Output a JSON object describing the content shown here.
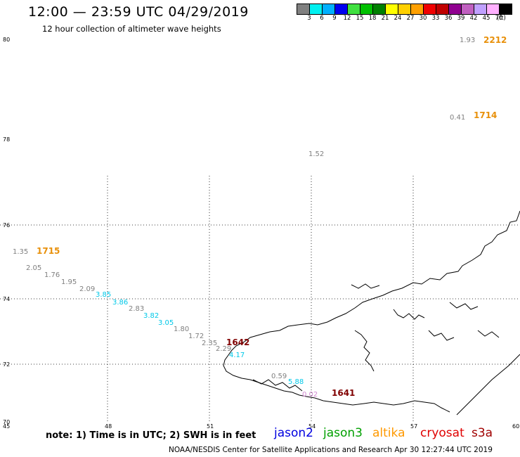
{
  "header": {
    "title": "12:00 — 23:59 UTC 04/29/2019",
    "subtitle": "12 hour collection of altimeter wave heights"
  },
  "legend": {
    "colors": [
      "#808080",
      "#00f0f0",
      "#00b0ff",
      "#0000f0",
      "#40e040",
      "#00c000",
      "#008000",
      "#ffff00",
      "#ffd000",
      "#ffa000",
      "#f00000",
      "#c00000",
      "#900090",
      "#c060c0",
      "#c0a0ff",
      "#ffb0ff",
      "#000000"
    ],
    "ticks": [
      "3",
      "6",
      "9",
      "12",
      "15",
      "18",
      "21",
      "24",
      "27",
      "30",
      "33",
      "36",
      "39",
      "42",
      "45",
      "70"
    ],
    "unit": "(ft)"
  },
  "axes": {
    "lat_labels": [
      "80",
      "78",
      "76",
      "74",
      "72",
      "70"
    ],
    "lon_labels": [
      "45",
      "48",
      "51",
      "54",
      "57",
      "60"
    ]
  },
  "observations": [
    {
      "text": "1.93",
      "color": "#808080"
    },
    {
      "text": "2212",
      "color": "#e8900a",
      "bold": true
    },
    {
      "text": "0.41",
      "color": "#808080"
    },
    {
      "text": "1714",
      "color": "#e8900a",
      "bold": true
    },
    {
      "text": "1.52",
      "color": "#808080"
    },
    {
      "text": "1.35",
      "color": "#808080"
    },
    {
      "text": "1715",
      "color": "#e8900a",
      "bold": true
    },
    {
      "text": "2.05",
      "color": "#808080"
    },
    {
      "text": "1.76",
      "color": "#808080"
    },
    {
      "text": "1.95",
      "color": "#808080"
    },
    {
      "text": "2.09",
      "color": "#808080"
    },
    {
      "text": "3.85",
      "color": "#00c8e8"
    },
    {
      "text": "3.86",
      "color": "#00c8e8"
    },
    {
      "text": "2.83",
      "color": "#808080"
    },
    {
      "text": "3.82",
      "color": "#00c8e8"
    },
    {
      "text": "3.05",
      "color": "#00c8e8"
    },
    {
      "text": "1.80",
      "color": "#808080"
    },
    {
      "text": "1.72",
      "color": "#808080"
    },
    {
      "text": "2.35",
      "color": "#808080"
    },
    {
      "text": "1642",
      "color": "#800000",
      "bold": true
    },
    {
      "text": "2.29",
      "color": "#808080"
    },
    {
      "text": "4.17",
      "color": "#00c8e8"
    },
    {
      "text": "0.59",
      "color": "#808080"
    },
    {
      "text": "5.88",
      "color": "#00c8e8"
    },
    {
      "text": "0.02",
      "color": "#d088d0"
    },
    {
      "text": "1641",
      "color": "#800000",
      "bold": true
    }
  ],
  "footer": {
    "note": "note:  1) Time is in UTC;  2) SWH is in feet",
    "satellites": [
      {
        "name": "jason2",
        "color": "#0000e0"
      },
      {
        "name": "jason3",
        "color": "#00a000"
      },
      {
        "name": "altika",
        "color": "#ff9900"
      },
      {
        "name": "cryosat",
        "color": "#e00000"
      },
      {
        "name": "s3a",
        "color": "#a00000"
      }
    ],
    "credit": "NOAA/NESDIS Center for Satellite Applications and Research    Apr 30 12:27:44 UTC 2019"
  }
}
